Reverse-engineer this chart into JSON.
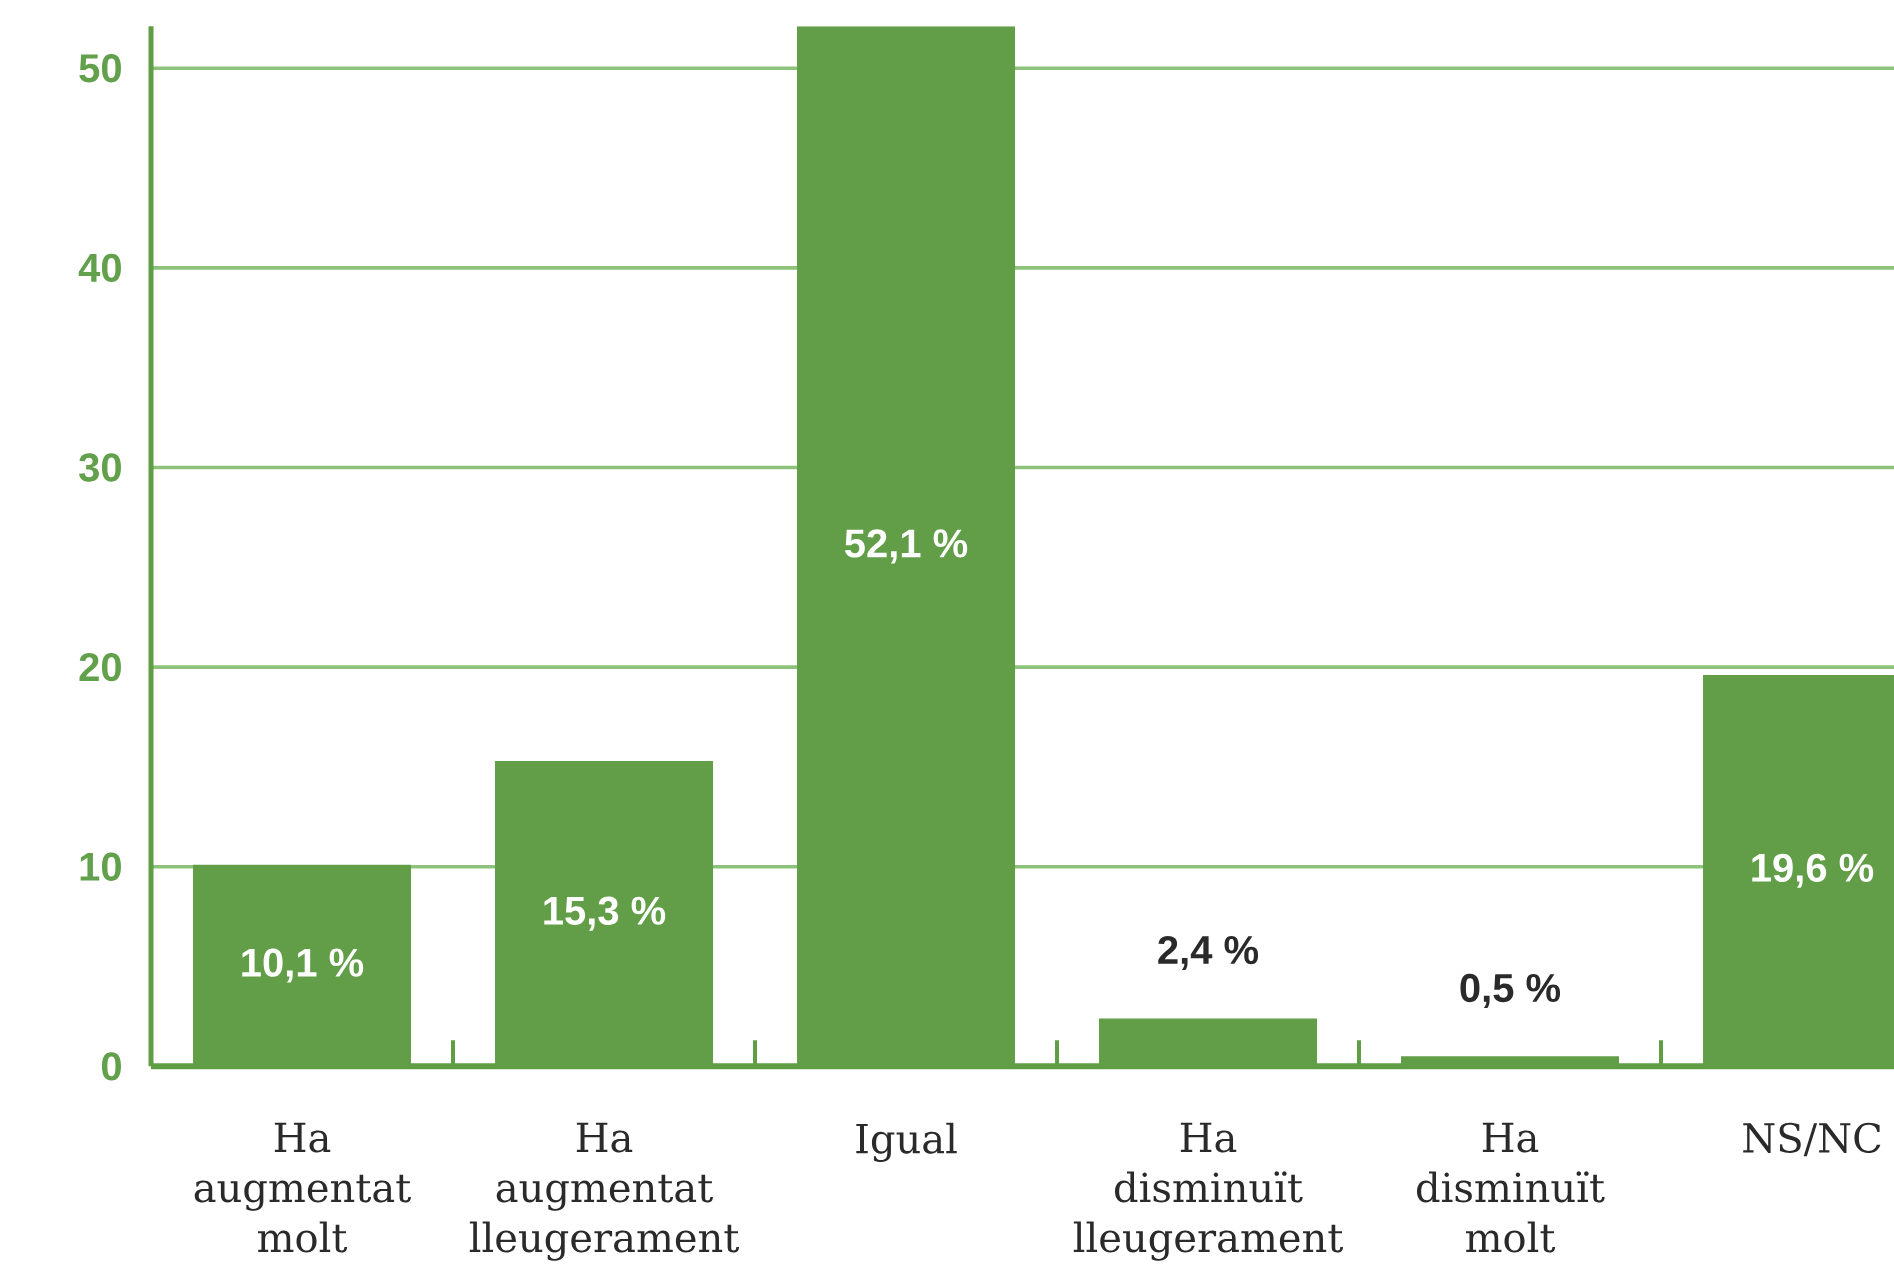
{
  "chart_data": {
    "type": "bar",
    "categories": [
      "Ha augmentat molt",
      "Ha augmentat lleugerament",
      "Igual",
      "Ha disminuït lleugerament",
      "Ha disminuït molt",
      "NS/NC"
    ],
    "values": [
      10.1,
      15.3,
      52.1,
      2.4,
      0.5,
      19.6
    ],
    "value_labels": [
      "10,1 %",
      "15,3 %",
      "52,1 %",
      "2,4 %",
      "0,5 %",
      "19,6 %"
    ],
    "color": "#629e48",
    "ylim": [
      0,
      52.1
    ],
    "yticks": [
      0,
      10,
      20,
      30,
      40,
      50
    ],
    "grid": "y"
  }
}
